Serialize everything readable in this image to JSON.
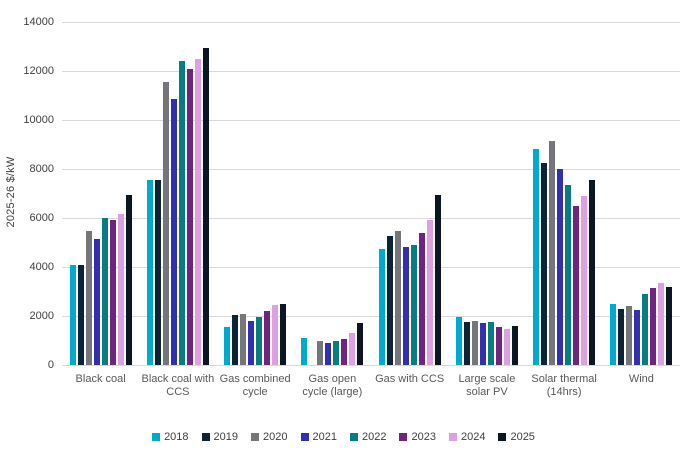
{
  "chart_data": {
    "type": "bar",
    "title": "",
    "xlabel": "",
    "ylabel": "2025-26 $/kW",
    "ylim": [
      0,
      14000
    ],
    "yticks": [
      0,
      2000,
      4000,
      6000,
      8000,
      10000,
      12000,
      14000
    ],
    "grid": "horizontal",
    "grid_color": "#d9d9d9",
    "axis_text_color": "#404040",
    "category_text_color": "#595959",
    "legend_position": "bottom",
    "categories": [
      "Black coal",
      "Black coal with CCS",
      "Gas combined cycle",
      "Gas open cycle (large)",
      "Gas with CCS",
      "Large scale solar PV",
      "Solar thermal (14hrs)",
      "Wind"
    ],
    "series": [
      {
        "name": "2018",
        "color": "#00A9CE",
        "values": [
          4100,
          7550,
          1550,
          1100,
          4750,
          1950,
          8800,
          2500
        ]
      },
      {
        "name": "2019",
        "color": "#0D2436",
        "values": [
          4100,
          7550,
          2050,
          null,
          5250,
          1750,
          8250,
          2300
        ]
      },
      {
        "name": "2020",
        "color": "#747679",
        "values": [
          5450,
          11550,
          2100,
          1000,
          5450,
          1800,
          9150,
          2400
        ]
      },
      {
        "name": "2021",
        "color": "#3330B0",
        "values": [
          5150,
          10850,
          1800,
          900,
          4800,
          1700,
          8000,
          2250
        ]
      },
      {
        "name": "2022",
        "color": "#087D81",
        "values": [
          6000,
          12400,
          1950,
          1000,
          4900,
          1750,
          7350,
          2900
        ]
      },
      {
        "name": "2023",
        "color": "#6F2480",
        "values": [
          5900,
          12100,
          2200,
          1050,
          5400,
          1550,
          6500,
          3150
        ]
      },
      {
        "name": "2024",
        "color": "#DDA0E1",
        "values": [
          6150,
          12500,
          2450,
          1300,
          5900,
          1450,
          6900,
          3350
        ]
      },
      {
        "name": "2025",
        "color": "#0A1622",
        "values": [
          6950,
          12950,
          2500,
          1700,
          6950,
          1600,
          7550,
          3200
        ]
      }
    ]
  }
}
